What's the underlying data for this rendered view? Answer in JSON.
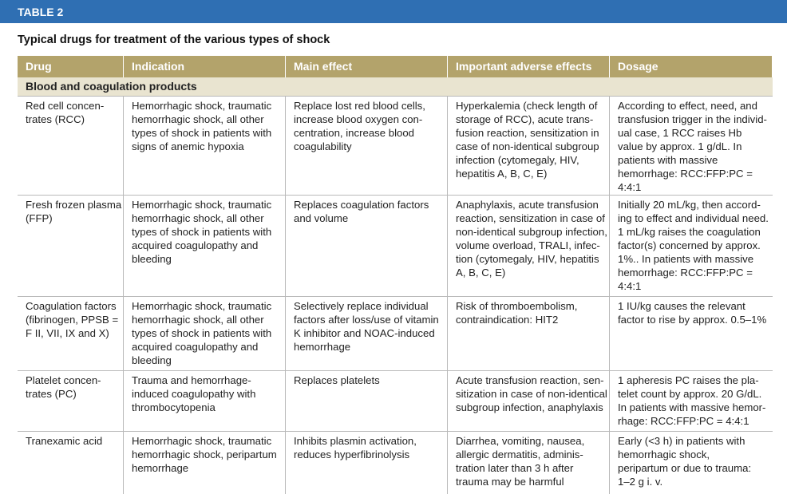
{
  "header": {
    "label": "TABLE 2",
    "title": "Typical drugs for treatment of the various types of shock"
  },
  "table": {
    "columns": [
      "Drug",
      "Indication",
      "Main effect",
      "Important adverse effects",
      "Dosage"
    ],
    "section": "Blood and coagulation products",
    "rows": [
      [
        [
          "Red cell concen-",
          "trates (RCC)"
        ],
        [
          "Hemorrhagic shock, traumatic",
          "hemorrhagic shock, all other",
          "types of shock in patients with",
          "signs of anemic hypoxia"
        ],
        [
          "Replace lost red blood cells,",
          "increase blood oxygen con-",
          "centration, increase blood",
          "coagulability"
        ],
        [
          "Hyperkalemia (check length of",
          "storage of RCC), acute trans-",
          "fusion reaction, sensitization in",
          "case of non-identical subgroup",
          "infection (cytomegaly, HIV,",
          "hepatitis A, B, C, E)"
        ],
        [
          "According to effect, need, and",
          "transfusion trigger in the individ-",
          "ual case, 1 RCC raises Hb",
          "value by approx. 1 g/dL. In",
          "patients with massive",
          "hemorrhage: RCC:FFP:PC =",
          "4:4:1"
        ]
      ],
      [
        [
          "Fresh frozen plasma",
          "(FFP)"
        ],
        [
          "Hemorrhagic shock, traumatic",
          "hemorrhagic shock, all other",
          "types of shock in patients with",
          "acquired coagulopathy and",
          "bleeding"
        ],
        [
          "Replaces coagulation factors",
          "and volume"
        ],
        [
          "Anaphylaxis, acute transfusion",
          "reaction, sensitization in case of",
          "non-identical subgroup infection,",
          "volume overload, TRALI, infec-",
          "tion (cytomegaly, HIV, hepatitis",
          "A, B, C, E)"
        ],
        [
          "Initially 20 mL/kg, then accord-",
          "ing to effect and individual need.",
          "1 mL/kg raises the coagulation",
          "factor(s) concerned by approx.",
          "1%.. In patients with massive",
          "hemorrhage: RCC:FFP:PC =",
          "4:4:1"
        ]
      ],
      [
        [
          "Coagulation factors",
          "(fibrinogen, PPSB =",
          "F II, VII, IX and X)"
        ],
        [
          "Hemorrhagic shock, traumatic",
          "hemorrhagic shock, all other",
          "types of shock in patients with",
          "acquired coagulopathy and",
          "bleeding"
        ],
        [
          "Selectively replace individual",
          "factors after loss/use of vitamin",
          "K inhibitor and NOAC-induced",
          "hemorrhage"
        ],
        [
          "Risk of thromboembolism,",
          "contraindication: HIT2"
        ],
        [
          "1 IU/kg causes the relevant",
          "factor to rise by approx. 0.5–1%"
        ]
      ],
      [
        [
          "Platelet concen-",
          "trates (PC)"
        ],
        [
          "Trauma and hemorrhage-",
          "induced coagulopathy with",
          "thrombocytopenia"
        ],
        [
          "Replaces platelets"
        ],
        [
          "Acute transfusion reaction, sen-",
          "sitization in case of non-identical",
          "subgroup infection, anaphylaxis"
        ],
        [
          "1 apheresis PC raises the pla-",
          "telet count by approx. 20 G/dL.",
          "In patients with massive hemor-",
          "rhage: RCC:FFP:PC = 4:4:1"
        ]
      ],
      [
        [
          "Tranexamic acid"
        ],
        [
          "Hemorrhagic shock, traumatic",
          "hemorrhagic shock, peripartum",
          "hemorrhage"
        ],
        [
          "Inhibits plasmin activation,",
          "reduces hyperfibrinolysis"
        ],
        [
          "Diarrhea, vomiting, nausea,",
          "allergic dermatitis, adminis-",
          "tration later than 3 h after",
          "trauma may be harmful"
        ],
        [
          "Early (<3 h) in patients with",
          "hemorrhagic shock,",
          "peripartum or due to trauma:",
          "1–2 g i. v."
        ]
      ]
    ]
  }
}
